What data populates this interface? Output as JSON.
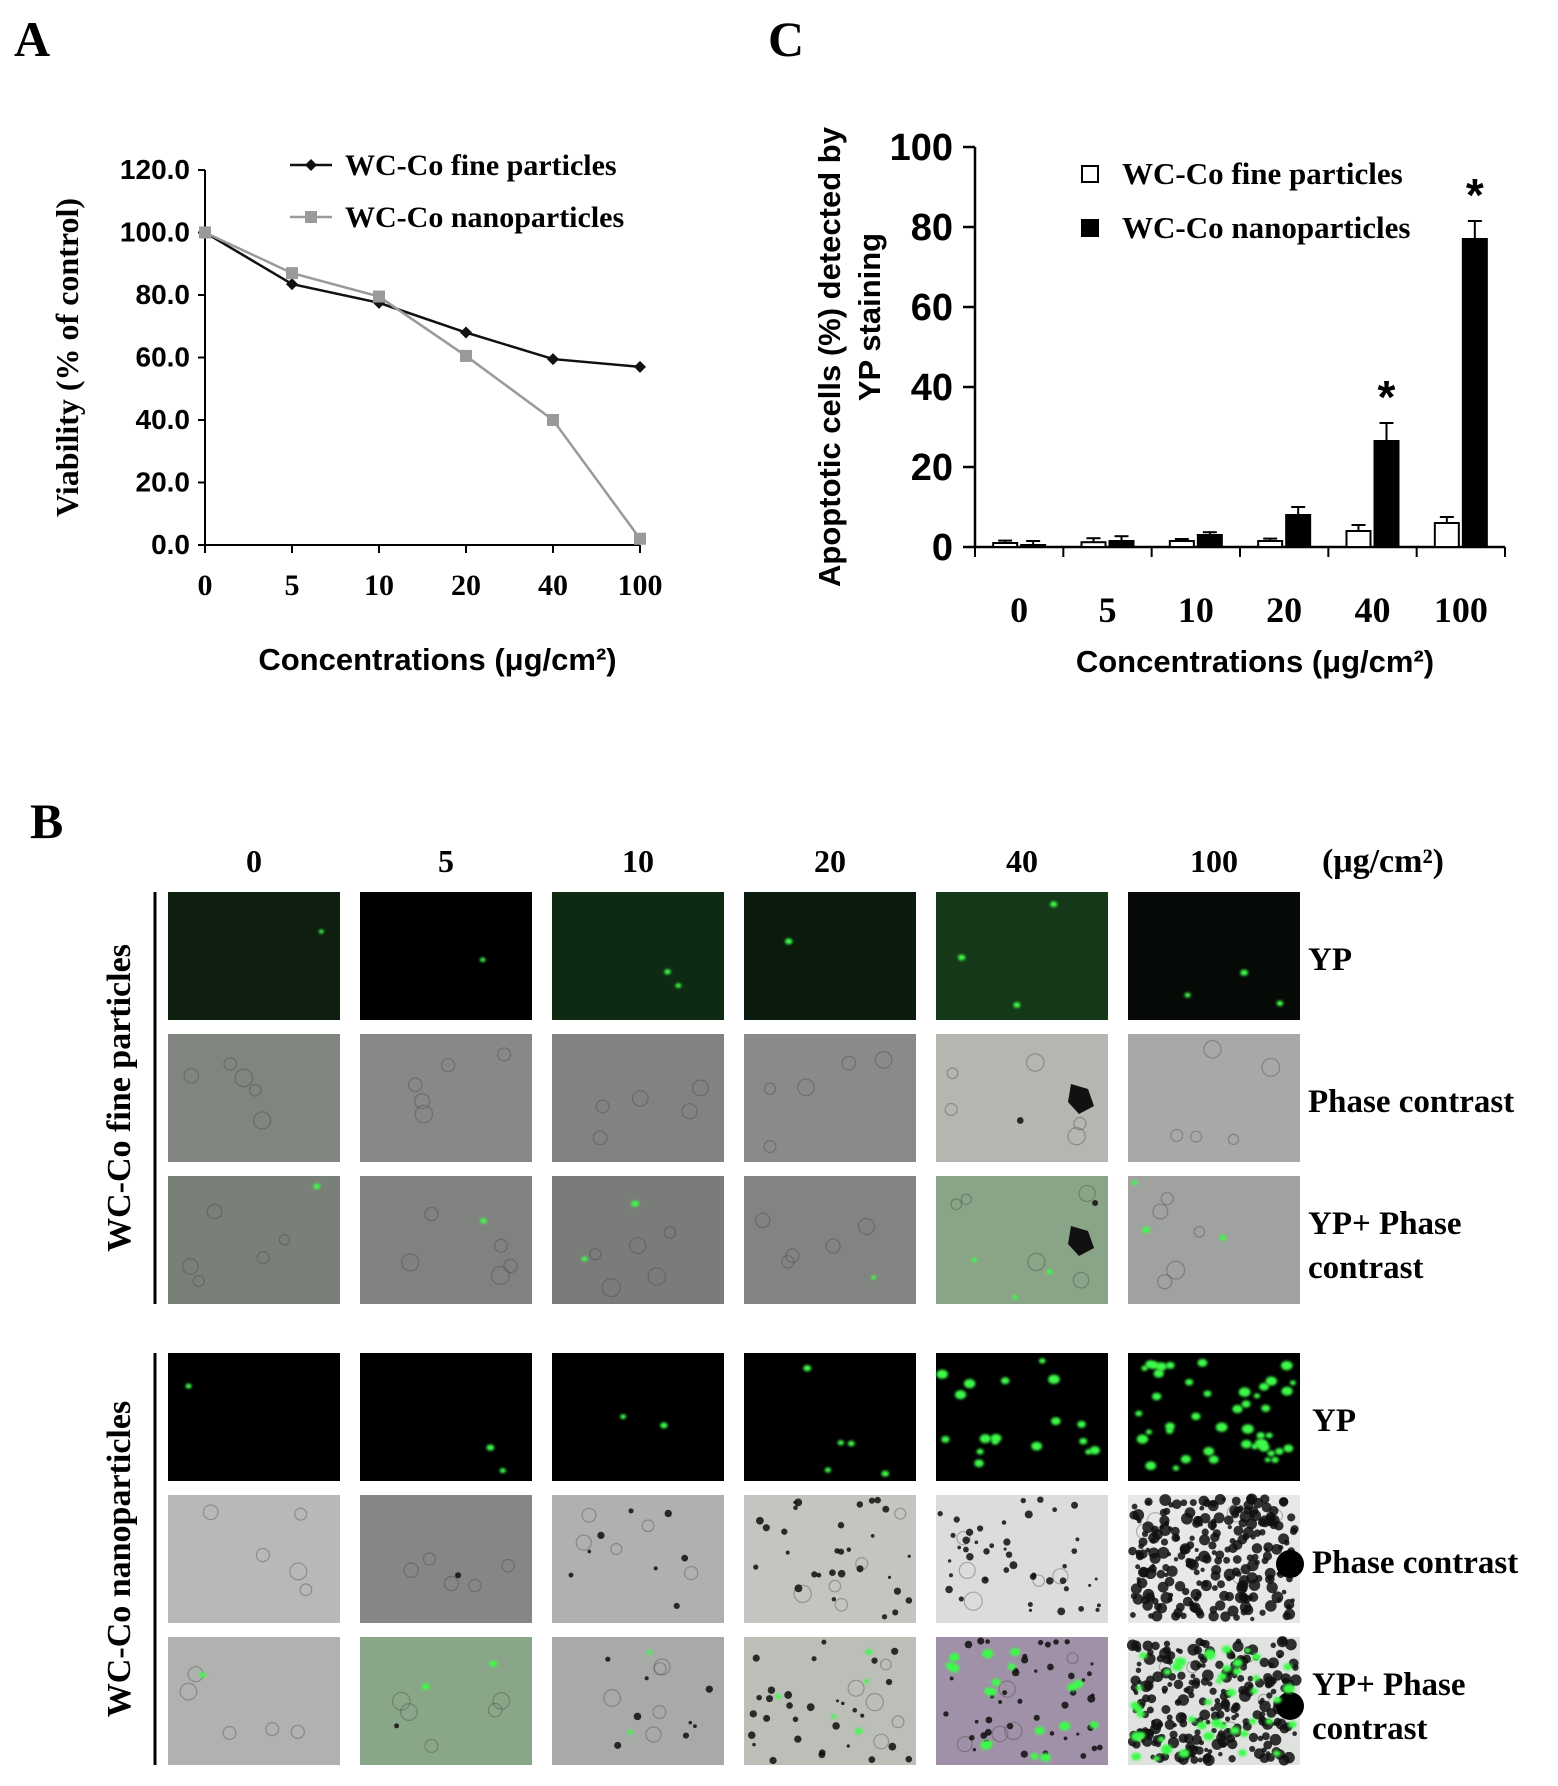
{
  "panels": {
    "a": {
      "letter": "A"
    },
    "b": {
      "letter": "B"
    },
    "c": {
      "letter": "C"
    }
  },
  "chart_data": [
    {
      "type": "line",
      "panel": "A",
      "categories": [
        "0",
        "5",
        "10",
        "20",
        "40",
        "100"
      ],
      "ylabel": "Viability (% of control)",
      "xlabel": "Concentrations (μg/cm²)",
      "ylim": [
        0,
        120
      ],
      "yticks": [
        0,
        20,
        40,
        60,
        80,
        100,
        120
      ],
      "ytick_labels": [
        "0.0",
        "20.0",
        "40.0",
        "60.0",
        "80.0",
        "100.0",
        "120.0"
      ],
      "legend_position": "top-right",
      "series": [
        {
          "name": "WC-Co fine particles",
          "color": "#111111",
          "marker": "diamond",
          "values": [
            100.0,
            83.5,
            77.5,
            68.0,
            59.5,
            57.0
          ]
        },
        {
          "name": "WC-Co nanoparticles",
          "color": "#9a9a9a",
          "marker": "square",
          "values": [
            100.0,
            87.0,
            79.5,
            60.5,
            40.0,
            2.0
          ]
        }
      ]
    },
    {
      "type": "bar",
      "panel": "C",
      "categories": [
        "0",
        "5",
        "10",
        "20",
        "40",
        "100"
      ],
      "ylabel_lines": [
        "Apoptotic cells (%) detected by",
        "YP staining"
      ],
      "xlabel": "Concentrations (μg/cm²)",
      "ylim": [
        0,
        100
      ],
      "yticks": [
        0,
        20,
        40,
        60,
        80,
        100
      ],
      "legend_position": "top-right",
      "series": [
        {
          "name": "WC-Co fine particles",
          "fill": "#ffffff",
          "values": [
            1.0,
            1.2,
            1.5,
            1.5,
            4.0,
            6.0
          ],
          "errors": [
            0.6,
            1.0,
            0.5,
            0.6,
            1.5,
            1.5
          ]
        },
        {
          "name": "WC-Co nanoparticles",
          "fill": "#000000",
          "values": [
            0.5,
            1.5,
            3.0,
            8.0,
            26.5,
            77.0
          ],
          "errors": [
            1.0,
            1.2,
            0.7,
            2.0,
            4.5,
            4.5
          ]
        }
      ],
      "significance": [
        {
          "category": "40",
          "series": "WC-Co nanoparticles",
          "label": "*"
        },
        {
          "category": "100",
          "series": "WC-Co nanoparticles",
          "label": "*"
        }
      ]
    }
  ],
  "micrographs": {
    "unit_label": "(μg/cm²)",
    "concentrations": [
      "0",
      "5",
      "10",
      "20",
      "40",
      "100"
    ],
    "groups": [
      {
        "name": "WC-Co fine particles",
        "rows": [
          {
            "label_lines": [
              "YP"
            ],
            "kind": "fluor",
            "spots": [
              1,
              1,
              2,
              1,
              3,
              3
            ]
          },
          {
            "label_lines": [
              "Phase contrast"
            ],
            "kind": "phase",
            "debris": [
              0,
              0,
              0,
              0,
              1,
              0
            ]
          },
          {
            "label_lines": [
              "YP+ Phase",
              "contrast"
            ],
            "kind": "overlay",
            "spots": [
              1,
              1,
              2,
              1,
              3,
              3
            ]
          }
        ]
      },
      {
        "name": "WC-Co nanoparticles",
        "rows": [
          {
            "label_lines": [
              "YP"
            ],
            "kind": "fluor",
            "spots": [
              1,
              2,
              2,
              5,
              18,
              45
            ]
          },
          {
            "label_lines": [
              "Phase contrast"
            ],
            "kind": "phase",
            "debris": [
              0,
              1,
              8,
              30,
              45,
              250
            ]
          },
          {
            "label_lines": [
              "YP+ Phase",
              "contrast"
            ],
            "kind": "overlay",
            "spots": [
              1,
              2,
              2,
              5,
              18,
              45
            ]
          }
        ]
      }
    ]
  }
}
